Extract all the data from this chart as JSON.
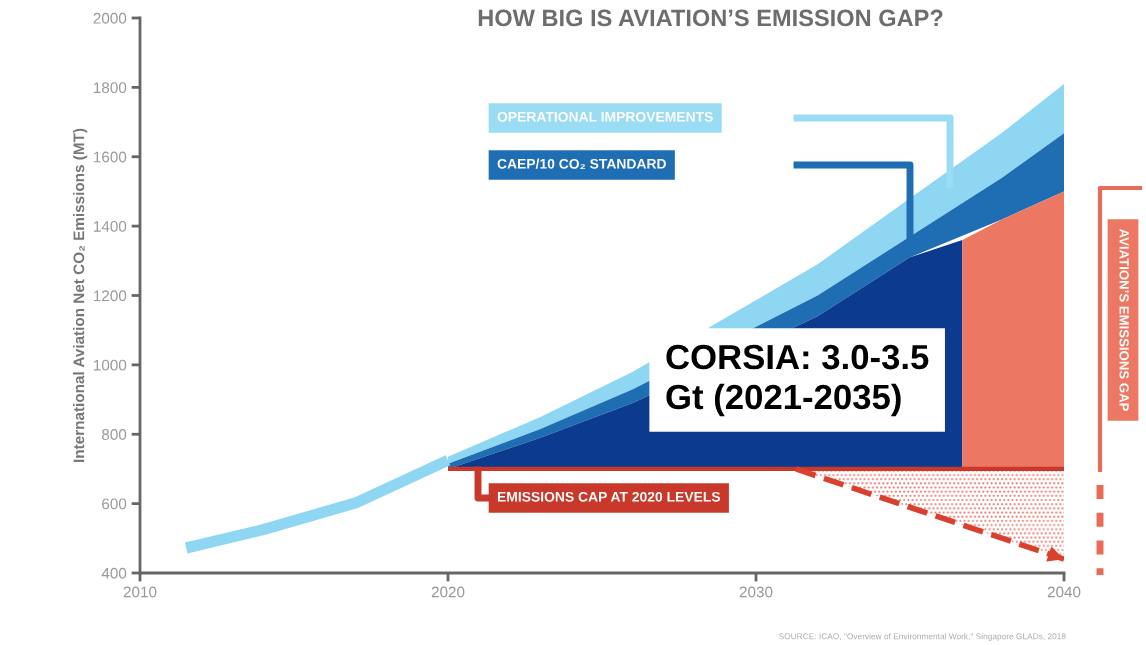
{
  "chart_data": {
    "type": "area",
    "title": "HOW BIG IS AVIATION’S EMISSION GAP?",
    "ylabel": "International Aviation Net CO₂ Emissions (MT)",
    "xlim": [
      2010,
      2040
    ],
    "ylim": [
      400,
      2000
    ],
    "xticks": [
      2010,
      2020,
      2030,
      2040
    ],
    "yticks": [
      400,
      600,
      800,
      1000,
      1200,
      1400,
      1600,
      1800,
      2000
    ],
    "grid": false,
    "series": [
      {
        "type": "line",
        "color": "#8fd6f2",
        "x": [
          2011.5,
          2014,
          2017,
          2020
        ],
        "values": [
          472,
          525,
          602,
          725
        ]
      },
      {
        "name": "OPERATIONAL IMPROVEMENTS",
        "color": "#8fd6f2",
        "x": [
          2020,
          2023,
          2026,
          2032,
          2035,
          2038,
          2040
        ],
        "values": [
          735,
          850,
          980,
          1290,
          1480,
          1670,
          1810
        ]
      },
      {
        "name": "CAEP/10 CO₂ STANDARD",
        "color": "#1f6db3",
        "x": [
          2020,
          2023,
          2026,
          2032,
          2035,
          2038,
          2040
        ],
        "values": [
          715,
          815,
          930,
          1200,
          1370,
          1540,
          1668
        ]
      },
      {
        "color": "#0b3a8e",
        "x": [
          2020,
          2023,
          2026,
          2032,
          2035,
          2036.7
        ],
        "values": [
          700,
          790,
          890,
          1140,
          1310,
          1360
        ]
      },
      {
        "color": "#ec7863",
        "x": [
          2036.7,
          2038,
          2040
        ],
        "values": [
          1360,
          1420,
          1500
        ]
      },
      {
        "name": "EMISSIONS CAP AT 2020 LEVELS",
        "type": "line",
        "color": "#c8392b",
        "x": [
          2020,
          2040
        ],
        "values": [
          700,
          700
        ]
      },
      {
        "color": "#d9402e",
        "line_style": "dashed",
        "x": [
          2031.3,
          2040
        ],
        "values": [
          700,
          440
        ]
      }
    ],
    "annotations": [
      "CORSIA: 3.0-3.5\nGt (2021-2035)",
      "AVIATION’S EMISSIONS GAP",
      "SOURCE: ICAO, \"Overview of Environmental Work,\" Singapore GLADs, 2018"
    ]
  }
}
